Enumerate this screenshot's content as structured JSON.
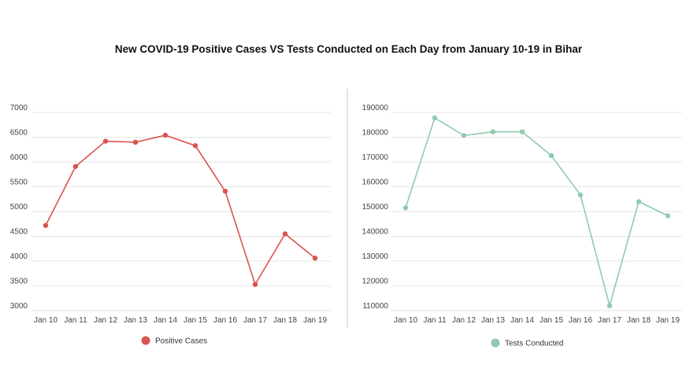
{
  "page": {
    "title": "New COVID-19 Positive Cases VS Tests Conducted on Each Day from January 10-19 in Bihar"
  },
  "chart_data": [
    {
      "type": "line",
      "categories": [
        "Jan 10",
        "Jan 11",
        "Jan 12",
        "Jan 13",
        "Jan 14",
        "Jan 15",
        "Jan 16",
        "Jan 17",
        "Jan 18",
        "Jan 19"
      ],
      "series": [
        {
          "name": "Positive Cases",
          "color": "#d9534f",
          "values": [
            4720,
            5910,
            6420,
            6400,
            6540,
            6330,
            5410,
            3530,
            4550,
            4060
          ]
        }
      ],
      "ylim": [
        3000,
        7000
      ],
      "yticks": [
        3000,
        3500,
        4000,
        4500,
        5000,
        5500,
        6000,
        6500,
        7000
      ],
      "grid": true,
      "legend": "bottom",
      "title": "",
      "xlabel": "",
      "ylabel": ""
    },
    {
      "type": "line",
      "categories": [
        "Jan 10",
        "Jan 11",
        "Jan 12",
        "Jan 13",
        "Jan 14",
        "Jan 15",
        "Jan 16",
        "Jan 17",
        "Jan 18",
        "Jan 19"
      ],
      "series": [
        {
          "name": "Tests Conducted",
          "color": "#8fcbad",
          "values": [
            151500,
            187800,
            180700,
            182200,
            182200,
            172600,
            156700,
            112000,
            154000,
            148300
          ]
        }
      ],
      "ylim": [
        110000,
        190000
      ],
      "yticks": [
        110000,
        120000,
        130000,
        140000,
        150000,
        160000,
        170000,
        180000,
        190000
      ],
      "grid": true,
      "legend": "bottom",
      "title": "",
      "xlabel": "",
      "ylabel": ""
    }
  ]
}
